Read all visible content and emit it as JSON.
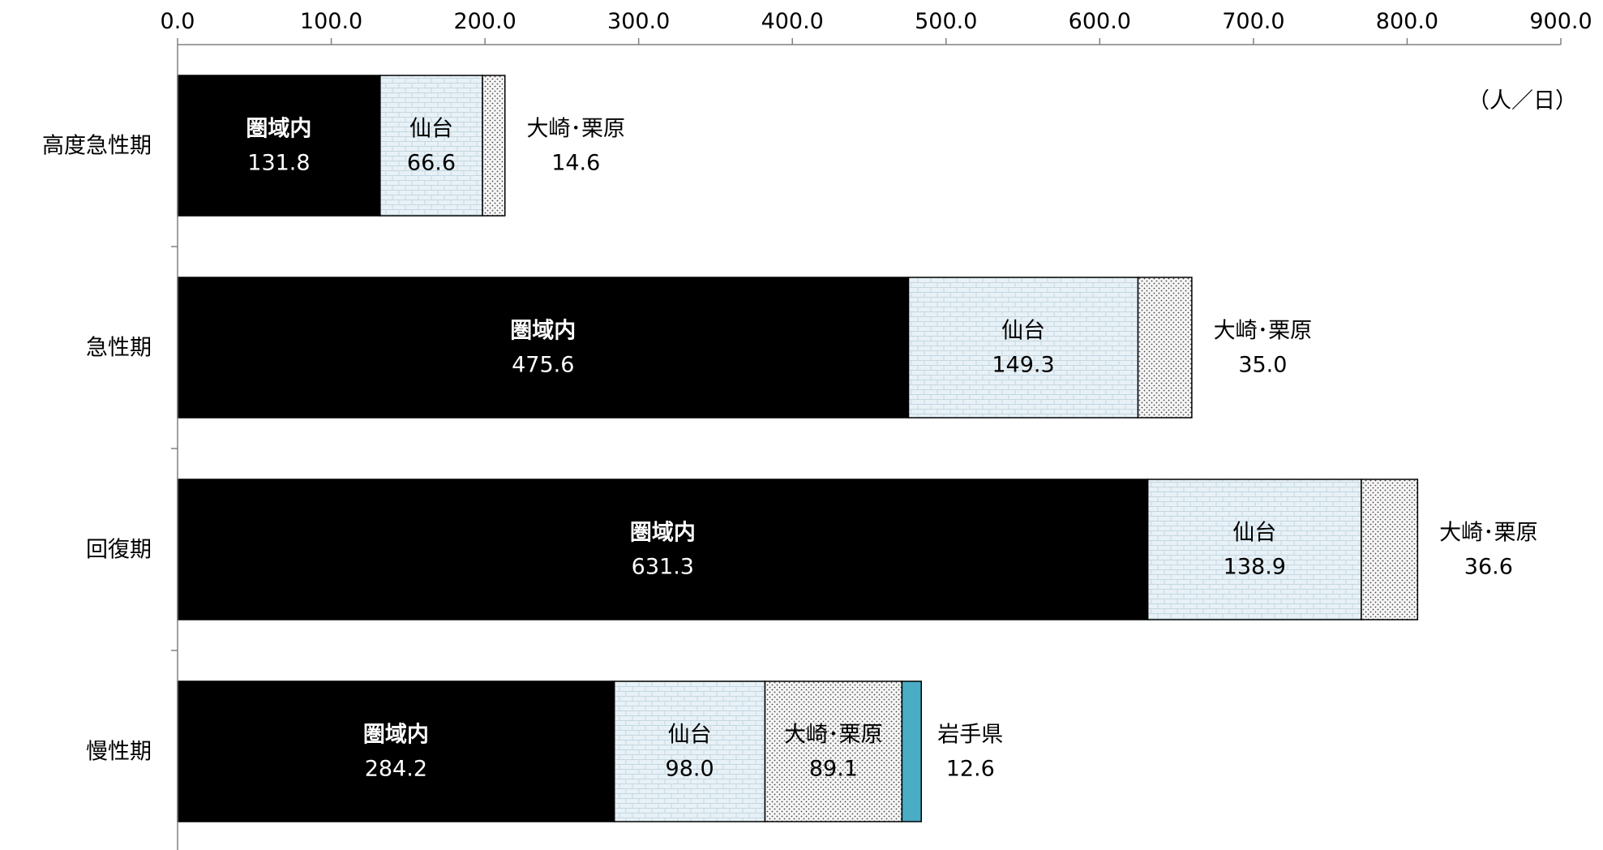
{
  "chart_data": {
    "type": "bar",
    "orientation": "horizontal",
    "stacked": true,
    "unit": "（人／日）",
    "categories": [
      "高度急性期",
      "急性期",
      "回復期",
      "慢性期"
    ],
    "series": [
      {
        "name": "圏域内",
        "values": [
          131.8,
          475.6,
          631.3,
          284.2
        ],
        "value_labels": [
          "131.8",
          "475.6",
          "631.3",
          "284.2"
        ],
        "color": "#000000",
        "pattern": "solid"
      },
      {
        "name": "仙台",
        "values": [
          66.6,
          149.3,
          138.9,
          98.0
        ],
        "value_labels": [
          "66.6",
          "149.3",
          "138.9",
          "98.0"
        ],
        "color": "#e8f1f6",
        "pattern": "brick"
      },
      {
        "name": "大崎･栗原",
        "values": [
          14.6,
          35.0,
          36.6,
          89.1
        ],
        "value_labels": [
          "14.6",
          "35.0",
          "36.6",
          "89.1"
        ],
        "color": "#f4f4f4",
        "pattern": "dots"
      },
      {
        "name": "岩手県",
        "values": [
          null,
          null,
          null,
          12.6
        ],
        "value_labels": [
          null,
          null,
          null,
          "12.6"
        ],
        "color": "#4bacc6",
        "pattern": "solid"
      }
    ],
    "xlim": [
      0,
      900
    ],
    "xticks": [
      "0.0",
      "100.0",
      "200.0",
      "300.0",
      "400.0",
      "500.0",
      "600.0",
      "700.0",
      "800.0",
      "900.0"
    ],
    "grid": false,
    "legend": "none"
  }
}
